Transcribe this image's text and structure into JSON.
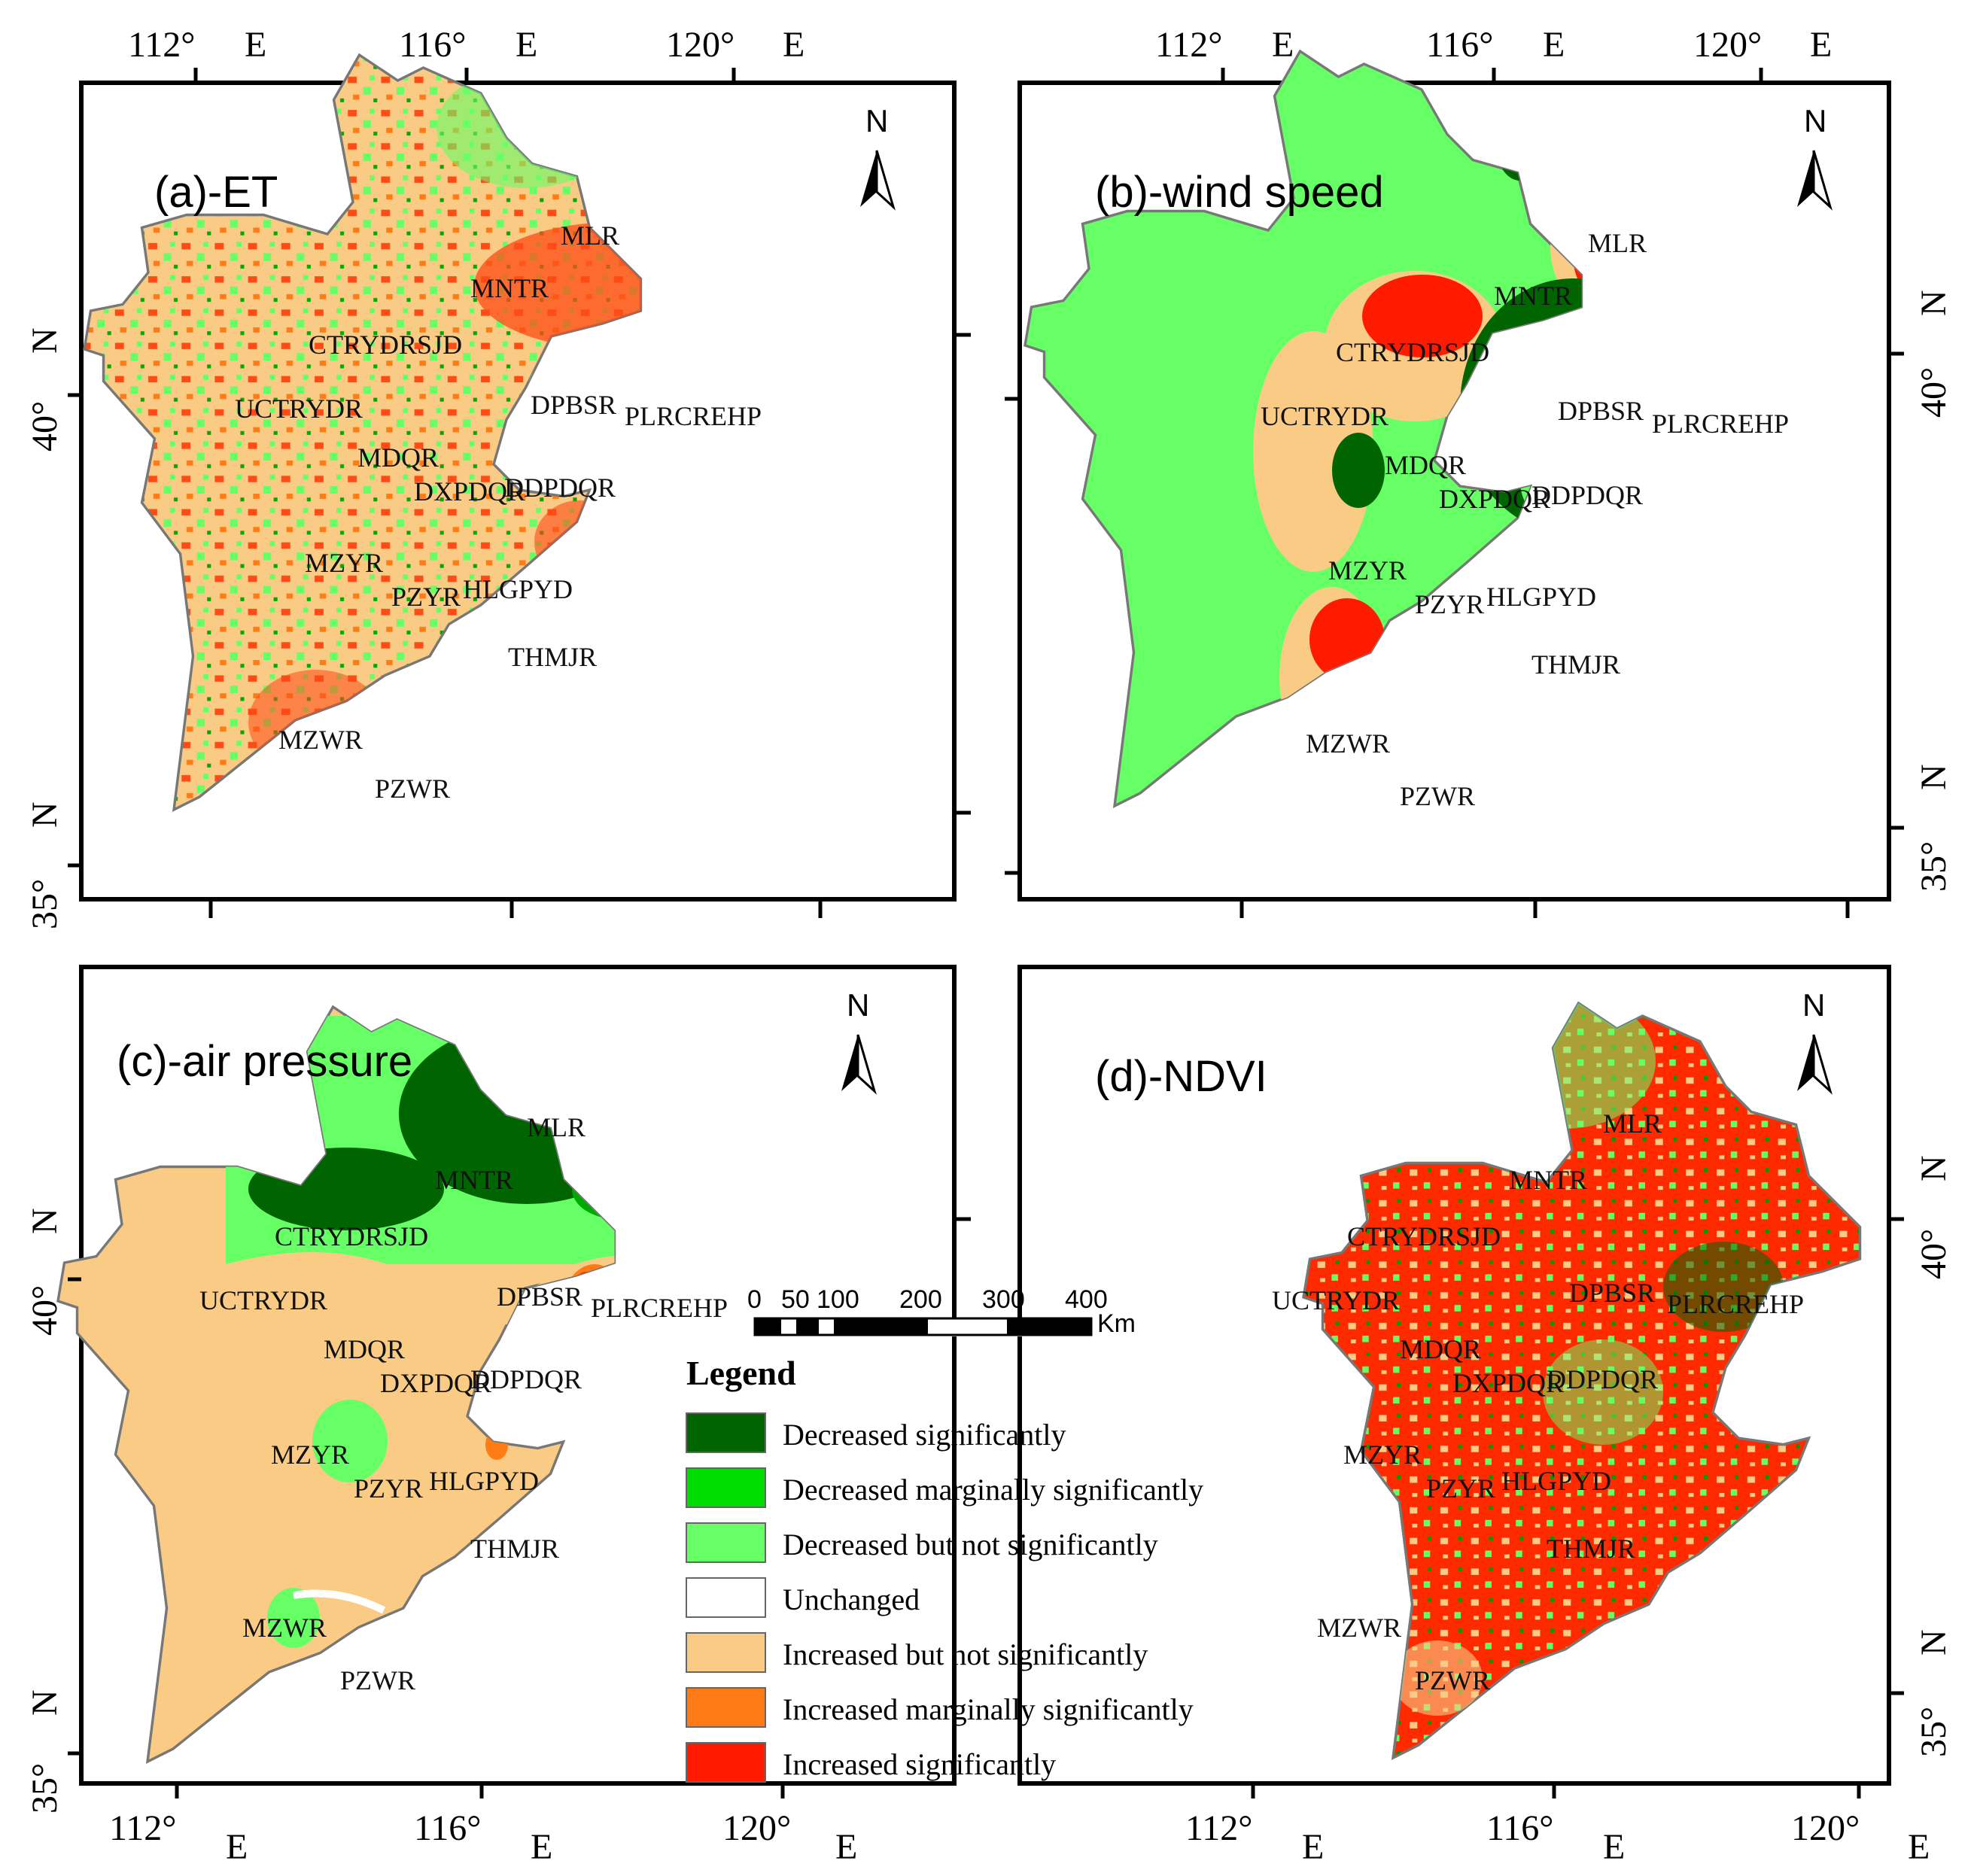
{
  "panels": {
    "a": {
      "title": "(a)-ET"
    },
    "b": {
      "title": "(b)-wind speed"
    },
    "c": {
      "title": "(c)-air pressure"
    },
    "d": {
      "title": "(d)-NDVI"
    }
  },
  "north_label": "N",
  "regions": {
    "mlr": "MLR",
    "mntr": "MNTR",
    "ctrydrsjd": "CTRYDRSJD",
    "uctrydr": "UCTRYDR",
    "dpbsr": "DPBSR",
    "plrcrehp": "PLRCREHP",
    "mdqr": "MDQR",
    "dxpdqr": "DXPDQR",
    "ddpdqr": "DDPDQR",
    "mzyr": "MZYR",
    "pzyr": "PZYR",
    "hlgpyd": "HLGPYD",
    "thmjr": "THMJR",
    "mzwr": "MZWR",
    "pzwr": "PZWR"
  },
  "axes": {
    "lon": [
      "112°",
      "116°",
      "120°"
    ],
    "lon_suffix": "E",
    "lat": [
      "40°",
      "35°"
    ],
    "lat_suffix": "N"
  },
  "legend": {
    "title": "Legend",
    "items": [
      {
        "label": "Decreased significantly",
        "color": "#006400"
      },
      {
        "label": "Decreased marginally significantly",
        "color": "#00dd00"
      },
      {
        "label": "Decreased but not significantly",
        "color": "#66ff66"
      },
      {
        "label": "Unchanged",
        "color": "#ffffff"
      },
      {
        "label": "Increased but not significantly",
        "color": "#f9cb85"
      },
      {
        "label": "Increased marginally significantly",
        "color": "#ff7b16"
      },
      {
        "label": "Increased significantly",
        "color": "#ff1a00"
      }
    ]
  },
  "scale_bar": {
    "ticks": [
      "0",
      "50",
      "100",
      "200",
      "300",
      "400"
    ],
    "unit": "Km"
  }
}
